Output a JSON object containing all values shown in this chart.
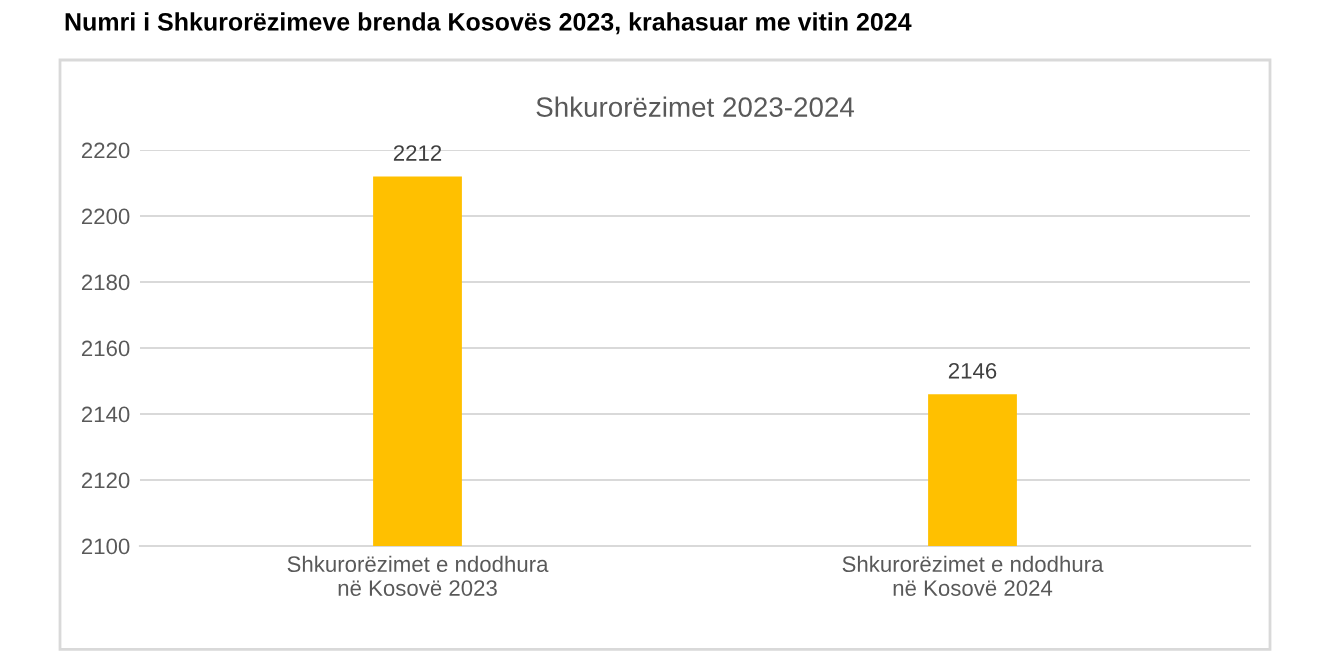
{
  "chart_data": {
    "type": "bar",
    "title": "Numri i Shkurorëzimeve brenda Kosovës 2023, krahasuar me vitin 2024",
    "subtitle": "Shkurorëzimet 2023-2024",
    "categories": [
      "Shkurorëzimet e ndodhura\nnë Kosovë 2023",
      "Shkurorëzimet e ndodhura\nnë Kosovë 2024"
    ],
    "values": [
      2212,
      2146
    ],
    "color": "#ffc000",
    "ylim": [
      2100,
      2220
    ],
    "yticks": [
      2100,
      2120,
      2140,
      2160,
      2180,
      2200,
      2220
    ],
    "grid": "y",
    "data_labels": true
  }
}
